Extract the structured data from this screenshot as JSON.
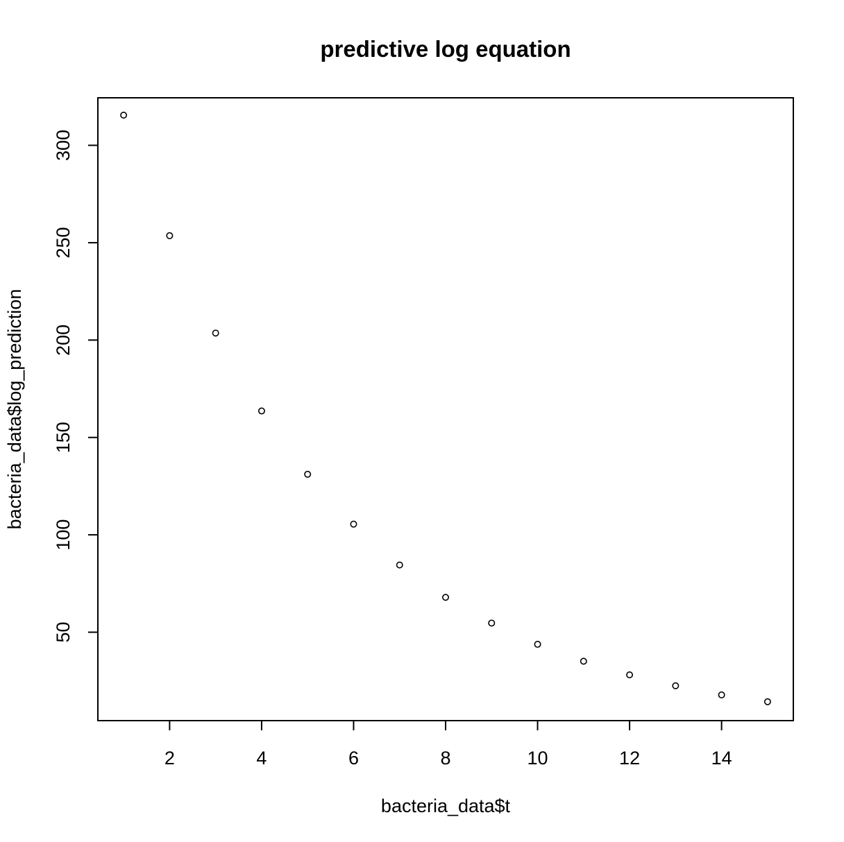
{
  "chart_data": {
    "type": "scatter",
    "title": "predictive log equation",
    "xlabel": "bacteria_data$t",
    "ylabel": "bacteria_data$log_prediction",
    "xlim": [
      0.44,
      15.56
    ],
    "ylim": [
      4.6,
      324.4
    ],
    "x_ticks": [
      2,
      4,
      6,
      8,
      10,
      12,
      14
    ],
    "y_ticks": [
      50,
      100,
      150,
      200,
      250,
      300
    ],
    "grid": false,
    "legend": "none",
    "marker": "open-circle",
    "series": [
      {
        "x": [
          1,
          2,
          3,
          4,
          5,
          6,
          7,
          8,
          9,
          10,
          11,
          12,
          13,
          14,
          15
        ],
        "y": [
          315.5,
          253.6,
          203.6,
          163.6,
          131.1,
          105.5,
          84.5,
          67.9,
          54.7,
          43.8,
          35.1,
          28.1,
          22.5,
          17.8,
          14.3
        ]
      }
    ]
  }
}
